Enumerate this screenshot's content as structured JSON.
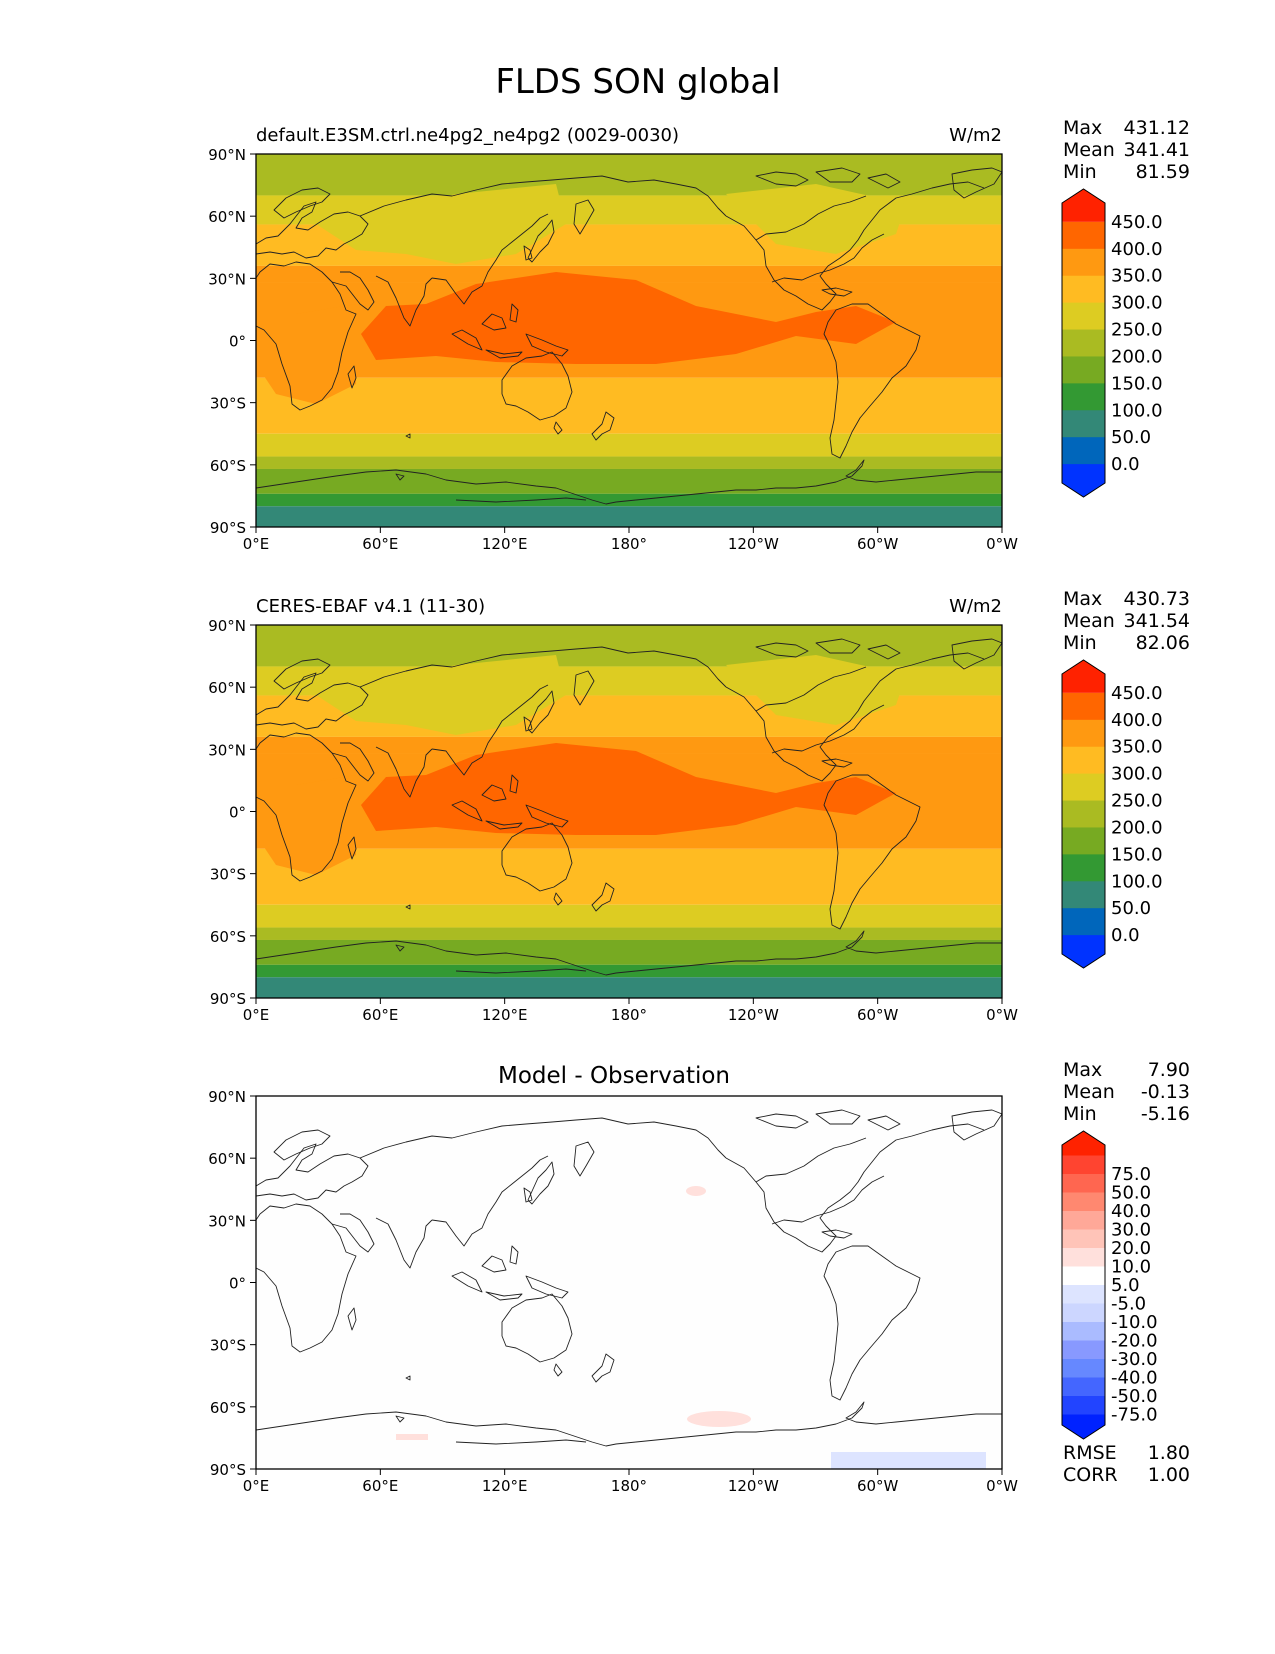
{
  "title": "FLDS SON global",
  "panels": [
    {
      "id": "test",
      "left_title": "default.E3SM.ctrl.ne4pg2_ne4pg2 (0029-0030)",
      "center_title": "",
      "units": "W/m2",
      "stats": {
        "max_label": "Max",
        "max": "431.12",
        "mean_label": "Mean",
        "mean": "341.41",
        "min_label": "Min",
        "min": "81.59"
      },
      "colorbar": {
        "colors": [
          "#0033ff",
          "#0066bb",
          "#338877",
          "#339933",
          "#77aa22",
          "#aabb22",
          "#ddcc22",
          "#ffbb22",
          "#ff9911",
          "#ff6600",
          "#ff2200"
        ],
        "labels": [
          "0.0",
          "50.0",
          "100.0",
          "150.0",
          "200.0",
          "250.0",
          "300.0",
          "350.0",
          "400.0",
          "450.0"
        ]
      }
    },
    {
      "id": "ref",
      "left_title": "CERES-EBAF v4.1 (11-30)",
      "center_title": "",
      "units": "W/m2",
      "stats": {
        "max_label": "Max",
        "max": "430.73",
        "mean_label": "Mean",
        "mean": "341.54",
        "min_label": "Min",
        "min": "82.06"
      },
      "colorbar": {
        "colors": [
          "#0033ff",
          "#0066bb",
          "#338877",
          "#339933",
          "#77aa22",
          "#aabb22",
          "#ddcc22",
          "#ffbb22",
          "#ff9911",
          "#ff6600",
          "#ff2200"
        ],
        "labels": [
          "0.0",
          "50.0",
          "100.0",
          "150.0",
          "200.0",
          "250.0",
          "300.0",
          "350.0",
          "400.0",
          "450.0"
        ]
      }
    },
    {
      "id": "diff",
      "left_title": "",
      "center_title": "Model - Observation",
      "units": "",
      "stats": {
        "max_label": "Max",
        "max": "7.90",
        "mean_label": "Mean",
        "mean": "-0.13",
        "min_label": "Min",
        "min": "-5.16"
      },
      "colorbar": {
        "colors": [
          "#0022ff",
          "#2244ff",
          "#4466ff",
          "#6688ff",
          "#8899ff",
          "#aabbff",
          "#ccd6ff",
          "#dde4ff",
          "#ffffff",
          "#ffe0dc",
          "#ffc4b8",
          "#ffa898",
          "#ff8870",
          "#ff6650",
          "#ff4430",
          "#ff2200"
        ],
        "labels": [
          "-75.0",
          "-50.0",
          "-40.0",
          "-30.0",
          "-20.0",
          "-10.0",
          "-5.0",
          "5.0",
          "10.0",
          "20.0",
          "30.0",
          "40.0",
          "50.0",
          "75.0"
        ]
      },
      "rmse_label": "RMSE",
      "rmse": "1.80",
      "corr_label": "CORR",
      "corr": "1.00"
    }
  ],
  "axes": {
    "lat_ticks": [
      "90°N",
      "60°N",
      "30°N",
      "0°",
      "30°S",
      "60°S",
      "90°S"
    ],
    "lon_ticks": [
      "0°E",
      "60°E",
      "120°E",
      "180°",
      "120°W",
      "60°W",
      "0°W"
    ]
  }
}
